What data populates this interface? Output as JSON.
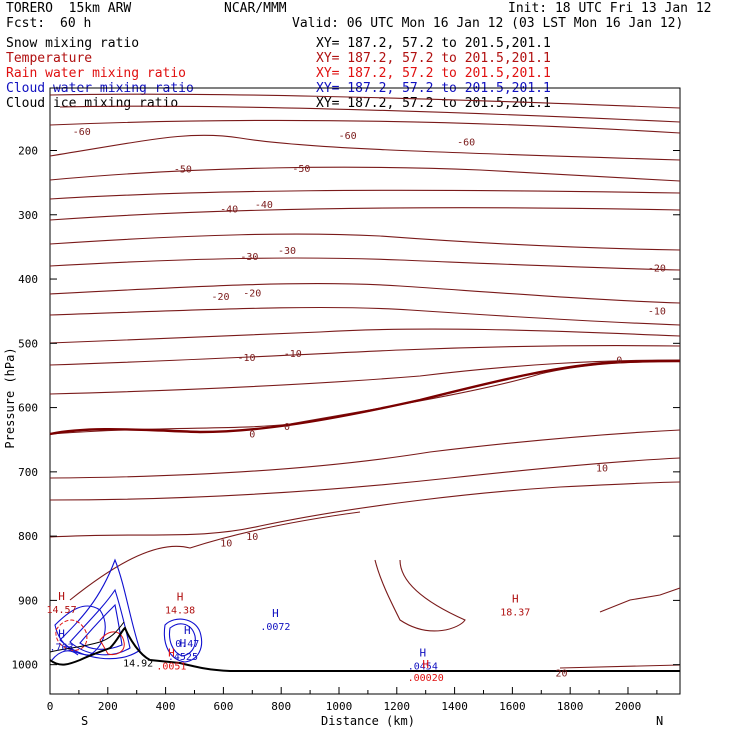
{
  "header": {
    "model": "TORERO  15km ARW",
    "center": "NCAR/MMM",
    "init": "Init: 18 UTC Fri 13 Jan 12",
    "fcst_label": "Fcst:",
    "fcst_value": "60 h",
    "valid": "Valid: 06 UTC Mon 16 Jan 12 (03 LST Mon 16 Jan 12)"
  },
  "fields": [
    {
      "name": "Snow mixing ratio",
      "xy": "XY= 187.2, 57.2 to 201.5,201.1",
      "color": "#000000"
    },
    {
      "name": "Temperature",
      "xy": "XY= 187.2, 57.2 to 201.5,201.1",
      "color": "#b01010"
    },
    {
      "name": "Rain water mixing ratio",
      "xy": "XY= 187.2, 57.2 to 201.5,201.1",
      "color": "#e01010"
    },
    {
      "name": "Cloud water mixing ratio",
      "xy": "XY= 187.2, 57.2 to 201.5,201.1",
      "color": "#1010c0"
    },
    {
      "name": "Cloud ice mixing ratio",
      "xy": "XY= 187.2, 57.2 to 201.5,201.1",
      "color": "#000000"
    }
  ],
  "chart_data": {
    "type": "contour",
    "xlabel": "Distance (km)",
    "ylabel": "Pressure (hPa)",
    "xlim": [
      0,
      2180
    ],
    "ylim_hpa": [
      1050,
      130
    ],
    "x_ticks": [
      0,
      200,
      400,
      600,
      800,
      1000,
      1200,
      1400,
      1600,
      1800,
      2000
    ],
    "y_ticks": [
      200,
      300,
      400,
      500,
      600,
      700,
      800,
      900,
      1000
    ],
    "endpoint_labels": {
      "left": "S",
      "right": "N"
    },
    "isotherms": [
      {
        "level": -60,
        "labels": [
          {
            "text": "-60",
            "x": 110,
            "p": 170
          },
          {
            "text": "-60",
            "x": 1030,
            "p": 176
          },
          {
            "text": "-60",
            "x": 1440,
            "p": 186
          }
        ]
      },
      {
        "level": -50,
        "labels": [
          {
            "text": "-50",
            "x": 460,
            "p": 228
          },
          {
            "text": "-50",
            "x": 870,
            "p": 227
          }
        ]
      },
      {
        "level": -40,
        "labels": [
          {
            "text": "-40",
            "x": 620,
            "p": 290
          },
          {
            "text": "-40",
            "x": 740,
            "p": 283
          }
        ]
      },
      {
        "level": -30,
        "labels": [
          {
            "text": "-30",
            "x": 690,
            "p": 364
          },
          {
            "text": "-30",
            "x": 820,
            "p": 355
          }
        ]
      },
      {
        "level": -20,
        "labels": [
          {
            "text": "-20",
            "x": 590,
            "p": 426
          },
          {
            "text": "-20",
            "x": 700,
            "p": 421
          },
          {
            "text": "-20",
            "x": 2100,
            "p": 382
          }
        ]
      },
      {
        "level": -10,
        "labels": [
          {
            "text": "-10",
            "x": 680,
            "p": 521
          },
          {
            "text": "-10",
            "x": 840,
            "p": 515
          },
          {
            "text": "-10",
            "x": 2100,
            "p": 449
          }
        ]
      },
      {
        "level": 0,
        "labels": [
          {
            "text": "0",
            "x": 700,
            "p": 640
          },
          {
            "text": "0",
            "x": 820,
            "p": 629
          },
          {
            "text": "0",
            "x": 1970,
            "p": 525
          }
        ]
      },
      {
        "level": 10,
        "labels": [
          {
            "text": "10",
            "x": 610,
            "p": 810
          },
          {
            "text": "10",
            "x": 700,
            "p": 800
          },
          {
            "text": "10",
            "x": 1910,
            "p": 693
          }
        ]
      },
      {
        "level": 20,
        "labels": [
          {
            "text": "20",
            "x": 1770,
            "p": 1012
          }
        ]
      }
    ],
    "markers": [
      {
        "symbol": "H",
        "value": "14.57",
        "x": 40,
        "p": 912,
        "color": "#b01010"
      },
      {
        "symbol": "H",
        "value": "14.38",
        "x": 450,
        "p": 913,
        "color": "#b01010"
      },
      {
        "symbol": "H",
        "value": "18.37",
        "x": 1610,
        "p": 916,
        "color": "#b01010"
      },
      {
        "symbol": "H",
        "value": ".763",
        "x": 40,
        "p": 970,
        "color": "#1010c0"
      },
      {
        "symbol": "H",
        "value": "0.47",
        "x": 475,
        "p": 965,
        "color": "#1010c0"
      },
      {
        "symbol": "H",
        "value": ".4525",
        "x": 460,
        "p": 985,
        "color": "#1010c0"
      },
      {
        "symbol": "H",
        "value": ".0072",
        "x": 780,
        "p": 938,
        "color": "#1010c0"
      },
      {
        "symbol": "H",
        "value": ".0454",
        "x": 1290,
        "p": 1000,
        "color": "#1010c0"
      },
      {
        "symbol": "H",
        "value": ".0051",
        "x": 420,
        "p": 1000,
        "color": "#e01010"
      },
      {
        "symbol": "H",
        "value": ".00020",
        "x": 1300,
        "p": 1018,
        "color": "#e01010"
      },
      {
        "symbol": "",
        "value": "14.92",
        "x": 305,
        "p": 995,
        "color": "#000000"
      }
    ]
  }
}
